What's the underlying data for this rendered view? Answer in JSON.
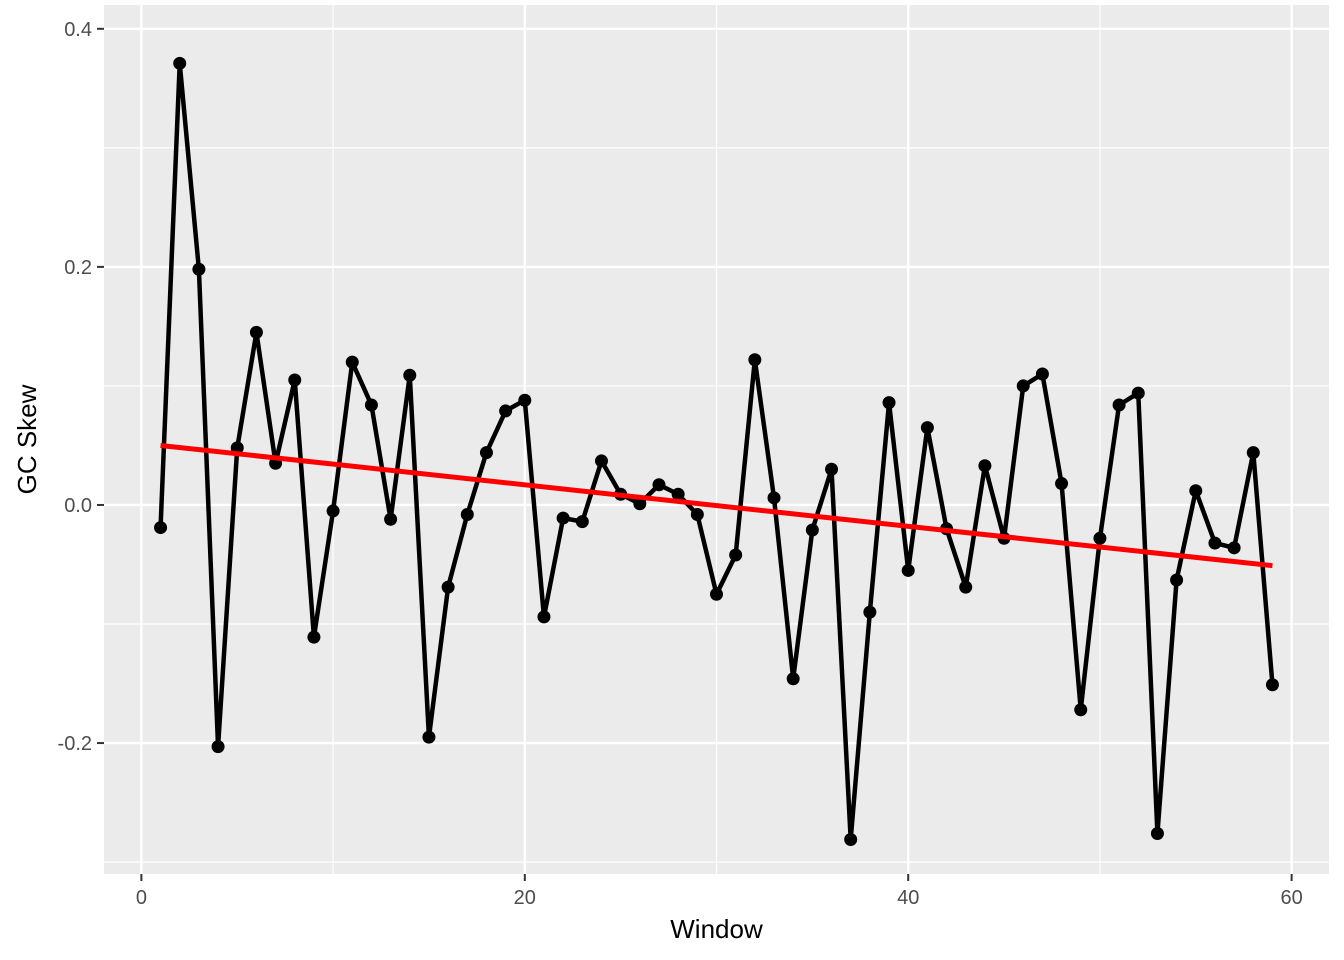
{
  "chart_data": {
    "type": "line",
    "xlabel": "Window",
    "ylabel": "GC Skew",
    "xlim": [
      -1.95,
      61.95
    ],
    "ylim": [
      -0.31,
      0.42
    ],
    "x_ticks": [
      0,
      20,
      40,
      60
    ],
    "x_tick_labels": [
      "0",
      "20",
      "40",
      "60"
    ],
    "y_ticks": [
      -0.2,
      0.0,
      0.2,
      0.4
    ],
    "y_tick_labels": [
      "-0.2",
      "0.0",
      "0.2",
      "0.4"
    ],
    "grid": true,
    "colors": {
      "panel_background": "#ebebeb",
      "grid": "#ffffff",
      "series": "#000000",
      "trend": "#ff0000"
    },
    "series": [
      {
        "x": [
          1,
          2,
          3,
          4,
          5,
          6,
          7,
          8,
          9,
          10,
          11,
          12,
          13,
          14,
          15,
          16,
          17,
          18,
          19,
          20,
          21,
          22,
          23,
          24,
          25,
          26,
          27,
          28,
          29,
          30,
          31,
          32,
          33,
          34,
          35,
          36,
          37,
          38,
          39,
          40,
          41,
          42,
          43,
          44,
          45,
          46,
          47,
          48,
          49,
          50,
          51,
          52,
          53,
          54,
          55,
          56,
          57,
          58,
          59
        ],
        "values": [
          -0.019,
          0.371,
          0.198,
          -0.203,
          0.048,
          0.145,
          0.035,
          0.105,
          -0.111,
          -0.005,
          0.12,
          0.084,
          -0.012,
          0.109,
          -0.195,
          -0.069,
          -0.008,
          0.044,
          0.079,
          0.088,
          -0.094,
          -0.011,
          -0.014,
          0.037,
          0.009,
          0.001,
          0.017,
          0.009,
          -0.008,
          -0.075,
          -0.042,
          0.122,
          0.006,
          -0.146,
          -0.021,
          0.03,
          -0.281,
          -0.09,
          0.086,
          -0.055,
          0.065,
          -0.02,
          -0.069,
          0.033,
          -0.028,
          0.1,
          0.11,
          0.018,
          -0.172,
          -0.028,
          0.084,
          0.094,
          -0.276,
          -0.063,
          0.012,
          -0.032,
          -0.036,
          0.044,
          -0.151
        ]
      }
    ],
    "trend_line": {
      "x": [
        1,
        59
      ],
      "values": [
        0.05,
        -0.051
      ]
    }
  }
}
